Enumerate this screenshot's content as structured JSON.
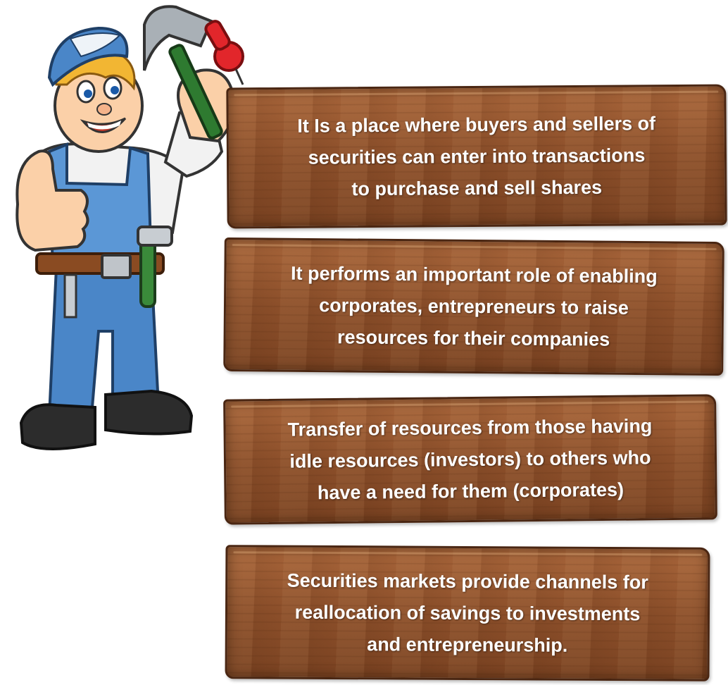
{
  "boards": [
    {
      "text": "It Is a place where buyers and sellers of\nsecurities can enter into transactions\nto purchase and sell shares"
    },
    {
      "text": "It performs an important role of enabling\ncorporates, entrepreneurs to raise\nresources for their companies"
    },
    {
      "text": "Transfer of resources from those having\nidle resources (investors) to others who\nhave a need for them (corporates)"
    },
    {
      "text": "Securities markets provide channels for\nreallocation of savings to investments\nand entrepreneurship."
    }
  ],
  "illustration": {
    "icon": "handyman-thumbs-up-icon"
  }
}
